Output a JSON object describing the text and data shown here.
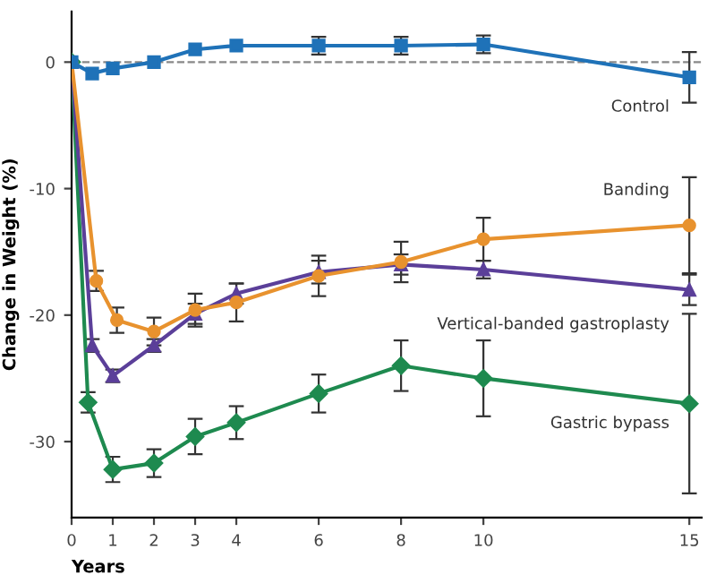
{
  "chart_data": {
    "type": "line",
    "xlabel": "Years",
    "ylabel": "Change in Weight (%)",
    "xlim": [
      0,
      15.3
    ],
    "ylim": [
      -36,
      4
    ],
    "xticks": [
      0,
      1,
      2,
      3,
      4,
      6,
      8,
      10,
      15
    ],
    "yticks": [
      0,
      -10,
      -20,
      -30
    ],
    "grid": false,
    "legend": false,
    "line_style": "solid",
    "ref_lines": [
      {
        "axis": "y",
        "value": 0,
        "color": "#888888",
        "line_style": "dashed"
      }
    ],
    "series": [
      {
        "name": "Control",
        "color": "#1f72b8",
        "marker": "square",
        "x": [
          0,
          0.5,
          1,
          2,
          3,
          4,
          6,
          8,
          10,
          15
        ],
        "values": [
          0,
          -0.9,
          -0.5,
          0,
          1.0,
          1.3,
          1.3,
          1.3,
          1.4,
          -1.2
        ],
        "errors": [
          null,
          null,
          null,
          null,
          null,
          null,
          0.7,
          0.7,
          0.7,
          2
        ]
      },
      {
        "name": "Banding",
        "color": "#e8922e",
        "marker": "circle",
        "x": [
          0,
          0.6,
          1.1,
          2,
          3,
          4,
          6,
          8,
          10,
          15
        ],
        "values": [
          0,
          -17.3,
          -20.4,
          -21.3,
          -19.6,
          -19.0,
          -16.9,
          -15.8,
          -14.0,
          -12.9
        ],
        "errors": [
          null,
          0.8,
          1.0,
          1.1,
          1.3,
          1.5,
          1.6,
          1.6,
          1.7,
          3.8
        ]
      },
      {
        "name": "Vertical-banded gastroplasty",
        "color": "#5b3f99",
        "marker": "triangle",
        "x": [
          0,
          0.5,
          1,
          2,
          3,
          4,
          6,
          8,
          10,
          15
        ],
        "values": [
          0,
          -22.4,
          -24.8,
          -22.4,
          -19.9,
          -18.3,
          -16.6,
          -16.0,
          -16.4,
          -18.0
        ],
        "errors": [
          null,
          0.5,
          0.5,
          0.5,
          0.8,
          0.8,
          0.9,
          0.8,
          0.7,
          1.2
        ]
      },
      {
        "name": "Gastric bypass",
        "color": "#1e8a4f",
        "marker": "diamond",
        "x": [
          0,
          0.4,
          1,
          2,
          3,
          4,
          6,
          8,
          10,
          15
        ],
        "values": [
          0,
          -26.9,
          -32.2,
          -31.7,
          -29.6,
          -28.5,
          -26.2,
          -24.0,
          -25.0,
          -27.0
        ],
        "errors": [
          null,
          0.8,
          1.0,
          1.1,
          1.4,
          1.3,
          1.5,
          2.0,
          3.0,
          7.1
        ]
      }
    ]
  }
}
